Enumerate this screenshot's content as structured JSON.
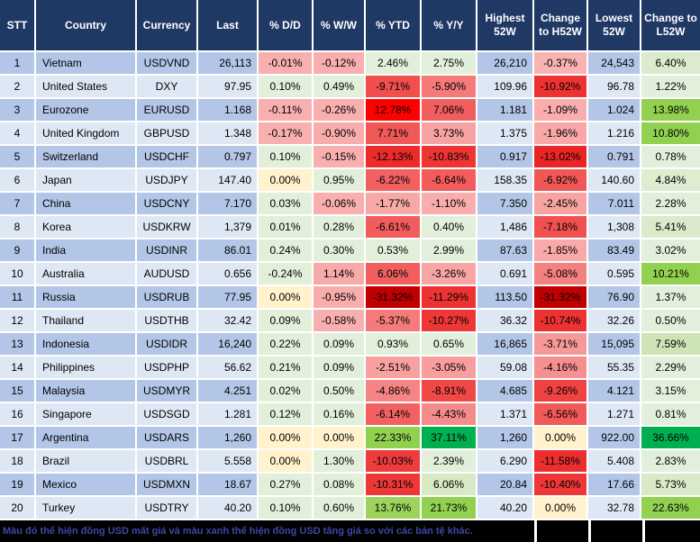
{
  "table": {
    "columns": [
      "STT",
      "Country",
      "Currency",
      "Last",
      "% D/D",
      "% W/W",
      "% YTD",
      "% Y/Y",
      "Highest 52W",
      "Change to H52W",
      "Lowest 52W",
      "Change to L52W"
    ],
    "rows": [
      {
        "stt": "1",
        "country": "Vietnam",
        "currency": "USDVND",
        "last": "26,113",
        "dd": {
          "v": "-0.01%",
          "bg": "#F9AFAF"
        },
        "ww": {
          "v": "-0.12%",
          "bg": "#F9AFAF"
        },
        "ytd": {
          "v": "2.46%",
          "bg": "#E2EFDA"
        },
        "yy": {
          "v": "2.75%",
          "bg": "#E2EFDA"
        },
        "high52": "26,210",
        "h52": {
          "v": "-0.37%",
          "bg": "#F9B3B3"
        },
        "low52": "24,543",
        "l52": {
          "v": "6.40%",
          "bg": "#DCEBCD"
        }
      },
      {
        "stt": "2",
        "country": "United States",
        "currency": "DXY",
        "last": "97.95",
        "dd": {
          "v": "0.10%",
          "bg": "#E2EFDA"
        },
        "ww": {
          "v": "0.49%",
          "bg": "#E2EFDA"
        },
        "ytd": {
          "v": "-9.71%",
          "bg": "#F14E4E"
        },
        "yy": {
          "v": "-5.90%",
          "bg": "#F57A7A"
        },
        "high52": "109.96",
        "h52": {
          "v": "-10.92%",
          "bg": "#EE3232"
        },
        "low52": "96.78",
        "l52": {
          "v": "1.22%",
          "bg": "#E2EFDA"
        }
      },
      {
        "stt": "3",
        "country": "Eurozone",
        "currency": "EURUSD",
        "last": "1.168",
        "dd": {
          "v": "-0.11%",
          "bg": "#F9AFAF"
        },
        "ww": {
          "v": "-0.26%",
          "bg": "#F9AFAF"
        },
        "ytd": {
          "v": "12.78%",
          "bg": "#FF0000"
        },
        "yy": {
          "v": "7.06%",
          "bg": "#F15E5E"
        },
        "high52": "1.181",
        "h52": {
          "v": "-1.09%",
          "bg": "#F9ADAD"
        },
        "low52": "1.024",
        "l52": {
          "v": "13.98%",
          "bg": "#92D050"
        }
      },
      {
        "stt": "4",
        "country": "United Kingdom",
        "currency": "GBPUSD",
        "last": "1.348",
        "dd": {
          "v": "-0.17%",
          "bg": "#F9AFAF"
        },
        "ww": {
          "v": "-0.90%",
          "bg": "#F9ACAC"
        },
        "ytd": {
          "v": "7.71%",
          "bg": "#F15858"
        },
        "yy": {
          "v": "3.73%",
          "bg": "#F8A3A3"
        },
        "high52": "1.375",
        "h52": {
          "v": "-1.96%",
          "bg": "#F9A8A8"
        },
        "low52": "1.216",
        "l52": {
          "v": "10.80%",
          "bg": "#92D050"
        }
      },
      {
        "stt": "5",
        "country": "Switzerland",
        "currency": "USDCHF",
        "last": "0.797",
        "dd": {
          "v": "0.10%",
          "bg": "#E2EFDA"
        },
        "ww": {
          "v": "-0.15%",
          "bg": "#F9AFAF"
        },
        "ytd": {
          "v": "-12.13%",
          "bg": "#EC2B2B"
        },
        "yy": {
          "v": "-10.83%",
          "bg": "#ED3535"
        },
        "high52": "0.917",
        "h52": {
          "v": "-13.02%",
          "bg": "#EB2525"
        },
        "low52": "0.791",
        "l52": {
          "v": "0.78%",
          "bg": "#E2EFDA"
        }
      },
      {
        "stt": "6",
        "country": "Japan",
        "currency": "USDJPY",
        "last": "147.40",
        "dd": {
          "v": "0.00%",
          "bg": "#FFF2CC"
        },
        "ww": {
          "v": "0.95%",
          "bg": "#E2EFDA"
        },
        "ytd": {
          "v": "-6.22%",
          "bg": "#F26060"
        },
        "yy": {
          "v": "-6.64%",
          "bg": "#F25C5C"
        },
        "high52": "158.35",
        "h52": {
          "v": "-6.92%",
          "bg": "#F15757"
        },
        "low52": "140.60",
        "l52": {
          "v": "4.84%",
          "bg": "#DEECD0"
        }
      },
      {
        "stt": "7",
        "country": "China",
        "currency": "USDCNY",
        "last": "7.170",
        "dd": {
          "v": "0.03%",
          "bg": "#E2EFDA"
        },
        "ww": {
          "v": "-0.06%",
          "bg": "#F9AFAF"
        },
        "ytd": {
          "v": "-1.77%",
          "bg": "#F9A8A8"
        },
        "yy": {
          "v": "-1.10%",
          "bg": "#F9ADAD"
        },
        "high52": "7.350",
        "h52": {
          "v": "-2.45%",
          "bg": "#F8A2A2"
        },
        "low52": "7.011",
        "l52": {
          "v": "2.28%",
          "bg": "#E2EFDA"
        }
      },
      {
        "stt": "8",
        "country": "Korea",
        "currency": "USDKRW",
        "last": "1,379",
        "dd": {
          "v": "0.01%",
          "bg": "#E2EFDA"
        },
        "ww": {
          "v": "0.28%",
          "bg": "#E2EFDA"
        },
        "ytd": {
          "v": "-6.61%",
          "bg": "#F25C5C"
        },
        "yy": {
          "v": "0.40%",
          "bg": "#E2EFDA"
        },
        "high52": "1,486",
        "h52": {
          "v": "-7.18%",
          "bg": "#F15050"
        },
        "low52": "1,308",
        "l52": {
          "v": "5.41%",
          "bg": "#DBEACB"
        }
      },
      {
        "stt": "9",
        "country": "India",
        "currency": "USDINR",
        "last": "86.01",
        "dd": {
          "v": "0.24%",
          "bg": "#E2EFDA"
        },
        "ww": {
          "v": "0.30%",
          "bg": "#E2EFDA"
        },
        "ytd": {
          "v": "0.53%",
          "bg": "#E2EFDA"
        },
        "yy": {
          "v": "2.99%",
          "bg": "#E2EFDA"
        },
        "high52": "87.63",
        "h52": {
          "v": "-1.85%",
          "bg": "#F9A9A9"
        },
        "low52": "83.49",
        "l52": {
          "v": "3.02%",
          "bg": "#E2EFDA"
        }
      },
      {
        "stt": "10",
        "country": "Australia",
        "currency": "AUDUSD",
        "last": "0.656",
        "dd": {
          "v": "-0.24%",
          "bg": "#E2EFDA"
        },
        "ww": {
          "v": "1.14%",
          "bg": "#F8A9A9"
        },
        "ytd": {
          "v": "6.06%",
          "bg": "#F25E5E"
        },
        "yy": {
          "v": "-3.26%",
          "bg": "#F8A5A5"
        },
        "high52": "0.691",
        "h52": {
          "v": "-5.08%",
          "bg": "#F58080"
        },
        "low52": "0.595",
        "l52": {
          "v": "10.21%",
          "bg": "#92D050"
        }
      },
      {
        "stt": "11",
        "country": "Russia",
        "currency": "USDRUB",
        "last": "77.95",
        "dd": {
          "v": "0.00%",
          "bg": "#FFF2CC"
        },
        "ww": {
          "v": "-0.95%",
          "bg": "#F9ACAC"
        },
        "ytd": {
          "v": "-31.32%",
          "bg": "#C00000"
        },
        "yy": {
          "v": "-11.29%",
          "bg": "#ED3232"
        },
        "high52": "113.50",
        "h52": {
          "v": "-31.32%",
          "bg": "#C00000"
        },
        "low52": "76.90",
        "l52": {
          "v": "1.37%",
          "bg": "#E2EFDA"
        }
      },
      {
        "stt": "12",
        "country": "Thailand",
        "currency": "USDTHB",
        "last": "32.42",
        "dd": {
          "v": "0.09%",
          "bg": "#E2EFDA"
        },
        "ww": {
          "v": "-0.58%",
          "bg": "#F9AFAF"
        },
        "ytd": {
          "v": "-5.37%",
          "bg": "#F57B7B"
        },
        "yy": {
          "v": "-10.27%",
          "bg": "#EE3838"
        },
        "high52": "36.32",
        "h52": {
          "v": "-10.74%",
          "bg": "#ED3232"
        },
        "low52": "32.26",
        "l52": {
          "v": "0.50%",
          "bg": "#E2EFDA"
        }
      },
      {
        "stt": "13",
        "country": "Indonesia",
        "currency": "USDIDR",
        "last": "16,240",
        "dd": {
          "v": "0.22%",
          "bg": "#E2EFDA"
        },
        "ww": {
          "v": "0.09%",
          "bg": "#E2EFDA"
        },
        "ytd": {
          "v": "0.93%",
          "bg": "#E2EFDA"
        },
        "yy": {
          "v": "0.65%",
          "bg": "#E2EFDA"
        },
        "high52": "16,865",
        "h52": {
          "v": "-3.71%",
          "bg": "#F79999"
        },
        "low52": "15,095",
        "l52": {
          "v": "7.59%",
          "bg": "#CDE5B6"
        }
      },
      {
        "stt": "14",
        "country": "Philippines",
        "currency": "USDPHP",
        "last": "56.62",
        "dd": {
          "v": "0.21%",
          "bg": "#E2EFDA"
        },
        "ww": {
          "v": "0.09%",
          "bg": "#E2EFDA"
        },
        "ytd": {
          "v": "-2.51%",
          "bg": "#F8A1A1"
        },
        "yy": {
          "v": "-3.05%",
          "bg": "#F89E9E"
        },
        "high52": "59.08",
        "h52": {
          "v": "-4.16%",
          "bg": "#F69090"
        },
        "low52": "55.35",
        "l52": {
          "v": "2.29%",
          "bg": "#E2EFDA"
        }
      },
      {
        "stt": "15",
        "country": "Malaysia",
        "currency": "USDMYR",
        "last": "4.251",
        "dd": {
          "v": "0.02%",
          "bg": "#E2EFDA"
        },
        "ww": {
          "v": "0.50%",
          "bg": "#E2EFDA"
        },
        "ytd": {
          "v": "-4.86%",
          "bg": "#F58484"
        },
        "yy": {
          "v": "-8.91%",
          "bg": "#F04747"
        },
        "high52": "4.685",
        "h52": {
          "v": "-9.26%",
          "bg": "#F04242"
        },
        "low52": "4.121",
        "l52": {
          "v": "3.15%",
          "bg": "#E2EFDA"
        }
      },
      {
        "stt": "16",
        "country": "Singapore",
        "currency": "USDSGD",
        "last": "1.281",
        "dd": {
          "v": "0.12%",
          "bg": "#E2EFDA"
        },
        "ww": {
          "v": "0.16%",
          "bg": "#E2EFDA"
        },
        "ytd": {
          "v": "-6.14%",
          "bg": "#F26161"
        },
        "yy": {
          "v": "-4.43%",
          "bg": "#F68B8B"
        },
        "high52": "1.371",
        "h52": {
          "v": "-6.56%",
          "bg": "#F25959"
        },
        "low52": "1.271",
        "l52": {
          "v": "0.81%",
          "bg": "#E2EFDA"
        }
      },
      {
        "stt": "17",
        "country": "Argentina",
        "currency": "USDARS",
        "last": "1,260",
        "dd": {
          "v": "0.00%",
          "bg": "#FFF2CC"
        },
        "ww": {
          "v": "0.00%",
          "bg": "#FFF2CC"
        },
        "ytd": {
          "v": "22.33%",
          "bg": "#92D050"
        },
        "yy": {
          "v": "37.11%",
          "bg": "#00B050"
        },
        "high52": "1,260",
        "h52": {
          "v": "0.00%",
          "bg": "#FFF2CC"
        },
        "low52": "922.00",
        "l52": {
          "v": "36.66%",
          "bg": "#00B050"
        }
      },
      {
        "stt": "18",
        "country": "Brazil",
        "currency": "USDBRL",
        "last": "5.558",
        "dd": {
          "v": "0.00%",
          "bg": "#FFF2CC"
        },
        "ww": {
          "v": "1.30%",
          "bg": "#E2EFDA"
        },
        "ytd": {
          "v": "-10.03%",
          "bg": "#EE3B3B"
        },
        "yy": {
          "v": "2.39%",
          "bg": "#E2EFDA"
        },
        "high52": "6.290",
        "h52": {
          "v": "-11.58%",
          "bg": "#ED2E2E"
        },
        "low52": "5.408",
        "l52": {
          "v": "2.83%",
          "bg": "#E2EFDA"
        }
      },
      {
        "stt": "19",
        "country": "Mexico",
        "currency": "USDMXN",
        "last": "18.67",
        "dd": {
          "v": "0.27%",
          "bg": "#E2EFDA"
        },
        "ww": {
          "v": "0.08%",
          "bg": "#E2EFDA"
        },
        "ytd": {
          "v": "-10.31%",
          "bg": "#EE3838"
        },
        "yy": {
          "v": "6.06%",
          "bg": "#D8E9C6"
        },
        "high52": "20.84",
        "h52": {
          "v": "-10.40%",
          "bg": "#EE3636"
        },
        "low52": "17.66",
        "l52": {
          "v": "5.73%",
          "bg": "#D9EAC8"
        }
      },
      {
        "stt": "20",
        "country": "Turkey",
        "currency": "USDTRY",
        "last": "40.20",
        "dd": {
          "v": "0.10%",
          "bg": "#E2EFDA"
        },
        "ww": {
          "v": "0.60%",
          "bg": "#E2EFDA"
        },
        "ytd": {
          "v": "13.76%",
          "bg": "#9BD35C"
        },
        "yy": {
          "v": "21.73%",
          "bg": "#92D050"
        },
        "high52": "40.20",
        "h52": {
          "v": "0.00%",
          "bg": "#FFF2CC"
        },
        "low52": "32.78",
        "l52": {
          "v": "22.63%",
          "bg": "#92D050"
        }
      }
    ]
  },
  "footer": {
    "note": "Màu đỏ thể hiện đồng USD mất giá và màu xanh thể hiện đồng USD tăng giá so với các bản tệ khác."
  },
  "colors": {
    "header_bg": "#1F3864",
    "row_odd_bg": "#B4C6E7",
    "row_even_bg": "#DEE7F4",
    "gridline": "#FFFFFF",
    "usd_gain_light": "#E2EFDA",
    "usd_gain_medium": "#92D050",
    "usd_gain_strong": "#00B050",
    "usd_loss_light": "#F9AFAF",
    "usd_loss_strong": "#EE3B3B",
    "usd_loss_extreme": "#C00000",
    "zero_change": "#FFF2CC",
    "footer_bg": "#000000",
    "footer_text": "#3949A8"
  }
}
